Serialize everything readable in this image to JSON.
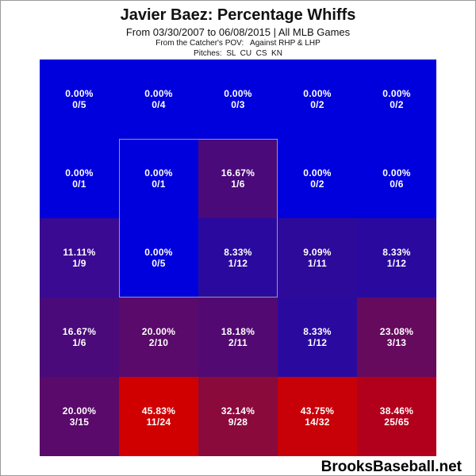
{
  "header": {
    "title": "Javier Baez: Percentage Whiffs",
    "subtitle": "From 03/30/2007 to 06/08/2015 | All MLB Games",
    "pov_label": "From the Catcher's POV:",
    "pov_value": "Against RHP & LHP",
    "pitches_label": "Pitches:",
    "pitches_value": "SL  CU  CS  KN"
  },
  "watermark": "BrooksBaseball.net",
  "chart_data": {
    "type": "heatmap",
    "title": "Javier Baez: Percentage Whiffs",
    "rows": 5,
    "cols": 5,
    "strike_zone": {
      "rows": [
        1,
        3
      ],
      "cols": [
        1,
        3
      ]
    },
    "cells": [
      [
        {
          "pct": "0.00%",
          "frac": "0/5",
          "color": "#0000dd"
        },
        {
          "pct": "0.00%",
          "frac": "0/4",
          "color": "#0000dd"
        },
        {
          "pct": "0.00%",
          "frac": "0/3",
          "color": "#0000dd"
        },
        {
          "pct": "0.00%",
          "frac": "0/2",
          "color": "#0000dd"
        },
        {
          "pct": "0.00%",
          "frac": "0/2",
          "color": "#0000dd"
        }
      ],
      [
        {
          "pct": "0.00%",
          "frac": "0/1",
          "color": "#0000dd"
        },
        {
          "pct": "0.00%",
          "frac": "0/1",
          "color": "#0000dd"
        },
        {
          "pct": "16.67%",
          "frac": "1/6",
          "color": "#4a0a7a"
        },
        {
          "pct": "0.00%",
          "frac": "0/2",
          "color": "#0000dd"
        },
        {
          "pct": "0.00%",
          "frac": "0/6",
          "color": "#0000dd"
        }
      ],
      [
        {
          "pct": "11.11%",
          "frac": "1/9",
          "color": "#3a0a93"
        },
        {
          "pct": "0.00%",
          "frac": "0/5",
          "color": "#0000dd"
        },
        {
          "pct": "8.33%",
          "frac": "1/12",
          "color": "#2a0a9e"
        },
        {
          "pct": "9.09%",
          "frac": "1/11",
          "color": "#2e0a9a"
        },
        {
          "pct": "8.33%",
          "frac": "1/12",
          "color": "#2a0a9e"
        }
      ],
      [
        {
          "pct": "16.67%",
          "frac": "1/6",
          "color": "#4a0a7a"
        },
        {
          "pct": "20.00%",
          "frac": "2/10",
          "color": "#5a0a6a"
        },
        {
          "pct": "18.18%",
          "frac": "2/11",
          "color": "#520a72"
        },
        {
          "pct": "8.33%",
          "frac": "1/12",
          "color": "#2a0a9e"
        },
        {
          "pct": "23.08%",
          "frac": "3/13",
          "color": "#660a5e"
        }
      ],
      [
        {
          "pct": "20.00%",
          "frac": "3/15",
          "color": "#5a0a6a"
        },
        {
          "pct": "45.83%",
          "frac": "11/24",
          "color": "#d00000"
        },
        {
          "pct": "32.14%",
          "frac": "9/28",
          "color": "#8a0a3c"
        },
        {
          "pct": "43.75%",
          "frac": "14/32",
          "color": "#c80008"
        },
        {
          "pct": "38.46%",
          "frac": "25/65",
          "color": "#b2001c"
        }
      ]
    ]
  }
}
